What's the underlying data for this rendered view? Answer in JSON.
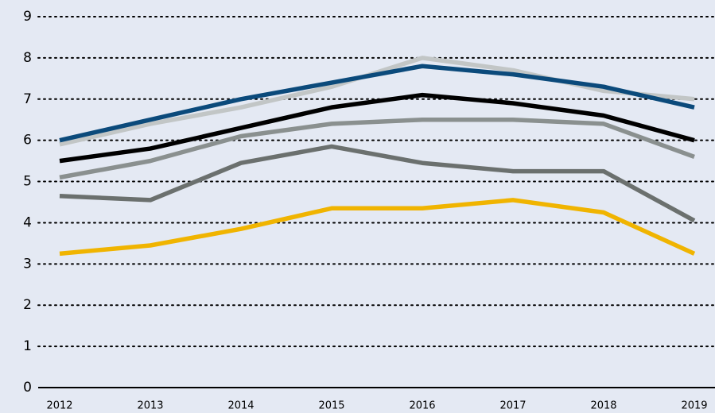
{
  "chart_data": {
    "type": "line",
    "categories": [
      "2012",
      "2013",
      "2014",
      "2015",
      "2016",
      "2017",
      "2018",
      "2019"
    ],
    "series": [
      {
        "color": "#c2c6c6",
        "values": [
          5.9,
          6.4,
          6.8,
          7.3,
          8.0,
          7.7,
          7.2,
          7.0
        ]
      },
      {
        "color": "#0b4a7b",
        "values": [
          6.0,
          6.5,
          7.0,
          7.4,
          7.8,
          7.6,
          7.3,
          6.8
        ]
      },
      {
        "color": "#000000",
        "values": [
          5.5,
          5.8,
          6.3,
          6.8,
          7.1,
          6.9,
          6.6,
          6.0
        ]
      },
      {
        "color": "#8a908f",
        "values": [
          5.1,
          5.5,
          6.1,
          6.4,
          6.5,
          6.5,
          6.4,
          5.6
        ]
      },
      {
        "color": "#6b706e",
        "values": [
          4.65,
          4.55,
          5.45,
          5.85,
          5.45,
          5.25,
          5.25,
          4.05
        ]
      },
      {
        "color": "#f0b400",
        "values": [
          3.25,
          3.45,
          3.85,
          4.35,
          4.35,
          4.55,
          4.25,
          3.25
        ]
      }
    ],
    "ylim": [
      0,
      9
    ],
    "yticks": [
      0,
      1,
      2,
      3,
      4,
      5,
      6,
      7,
      8,
      9
    ],
    "grid": true
  }
}
